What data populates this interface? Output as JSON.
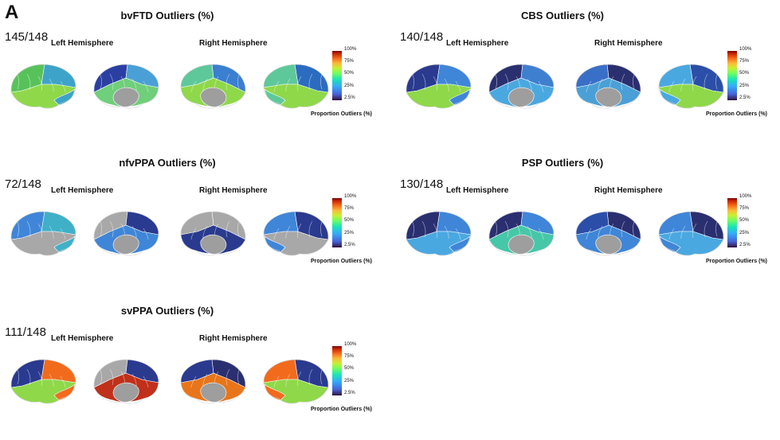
{
  "figure": {
    "panel_letter": "A"
  },
  "legend": {
    "ticks": [
      "100%",
      "75%",
      "50%",
      "25%",
      "2.5%"
    ],
    "label": "Proportion Outliers (%)"
  },
  "hemispheres": {
    "left": "Left Hemisphere",
    "right": "Right Hemisphere"
  },
  "panels": [
    {
      "title": "bvFTD Outliers (%)",
      "count": "145/148",
      "colors": {
        "lat_l": [
          "#58c25a",
          "#3ea3c9",
          "#8fd84a"
        ],
        "med_l": [
          "#2b3fa3",
          "#4aa0d6",
          "#6fcf7a"
        ],
        "med_r": [
          "#3a7fd0",
          "#5ec89a",
          "#8fd84a"
        ],
        "lat_r": [
          "#2b6cc0",
          "#5ec89a",
          "#8fd84a"
        ]
      }
    },
    {
      "title": "CBS Outliers (%)",
      "count": "140/148",
      "colors": {
        "lat_l": [
          "#2a3a8f",
          "#3f86d8",
          "#8fd84a"
        ],
        "med_l": [
          "#2a2f70",
          "#3f7fd0",
          "#4aa8e0"
        ],
        "med_r": [
          "#2a2f70",
          "#3a6fc8",
          "#4aa0d6"
        ],
        "lat_r": [
          "#2b4fa8",
          "#4aa8e0",
          "#8fd84a"
        ]
      }
    },
    {
      "title": "nfvPPA Outliers (%)",
      "count": "72/148",
      "colors": {
        "lat_l": [
          "#3f86d8",
          "#3fb0c8",
          "#a8a8a8"
        ],
        "med_l": [
          "#a8a8a8",
          "#2a3a8f",
          "#3f86d8"
        ],
        "med_r": [
          "#a8a8a8",
          "#a8a8a8",
          "#2a3a8f"
        ],
        "lat_r": [
          "#2a3a8f",
          "#3f86d8",
          "#a8a8a8"
        ]
      }
    },
    {
      "title": "PSP Outliers (%)",
      "count": "130/148",
      "colors": {
        "lat_l": [
          "#2a2f70",
          "#3f86d8",
          "#4aa8e0"
        ],
        "med_l": [
          "#2a2f70",
          "#3f86d8",
          "#46c8a8"
        ],
        "med_r": [
          "#2a2f70",
          "#2b4fa8",
          "#3f86d8"
        ],
        "lat_r": [
          "#2a2f70",
          "#3f86d8",
          "#4aa8e0"
        ]
      }
    },
    {
      "title": "svPPA Outliers (%)",
      "count": "111/148",
      "colors": {
        "lat_l": [
          "#2a3a8f",
          "#f26b1d",
          "#8fd84a"
        ],
        "med_l": [
          "#a8a8a8",
          "#2a3a8f",
          "#c0301a"
        ],
        "med_r": [
          "#2a2f70",
          "#2a3a8f",
          "#e8751a"
        ],
        "lat_r": [
          "#2a3a8f",
          "#f26b1d",
          "#8fd84a"
        ]
      }
    }
  ]
}
